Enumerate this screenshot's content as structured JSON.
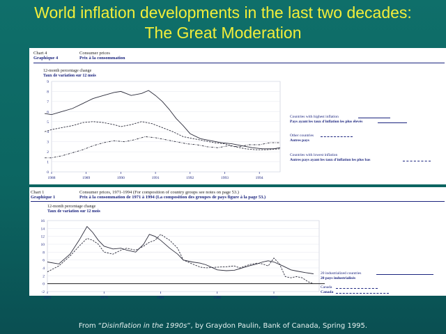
{
  "slide": {
    "title_line1": "World inflation developments in the last two decades:",
    "title_line2": "The Great Moderation",
    "footer_prefix": "From “",
    "footer_em": "Disinflation in the 1990s",
    "footer_suffix": "”, by Graydon Paulin, Bank of Canada, Spring 1995.",
    "title_color": "#f2ee3a"
  },
  "chart_data": [
    {
      "type": "line",
      "chart_label_en": "Chart 4",
      "chart_label_fr": "Graphique 4",
      "title": "Consumer prices",
      "title_fr": "Prix à la consommation",
      "ylabel": "12-month percentage change",
      "ylabel_fr": "Taux de variation sur 12 mois",
      "ylim": [
        0,
        9
      ],
      "y_ticks": [
        "0",
        "1",
        "2",
        "3",
        "4",
        "5",
        "6",
        "7",
        "8",
        "9"
      ],
      "x_ticks": [
        "1988",
        "1989",
        "1990",
        "1991",
        "1992",
        "1993",
        "1994"
      ],
      "x_range": [
        1988,
        1994.6
      ],
      "series": [
        {
          "name": "Countries with highest inflation",
          "name_fr": "Pays ayant les taux d'inflation les plus élevés",
          "style": "solid",
          "x": [
            1987.8,
            1988.0,
            1988.3,
            1988.6,
            1988.9,
            1989.2,
            1989.5,
            1989.8,
            1990.0,
            1990.3,
            1990.6,
            1990.8,
            1991.0,
            1991.2,
            1991.4,
            1991.6,
            1991.8,
            1992.0,
            1992.3,
            1992.6,
            1992.9,
            1993.2,
            1993.5,
            1993.8,
            1994.1,
            1994.4,
            1994.6
          ],
          "y": [
            5.8,
            5.7,
            6.0,
            6.3,
            6.8,
            7.3,
            7.6,
            7.9,
            8.0,
            7.6,
            7.8,
            8.1,
            7.6,
            7.0,
            6.2,
            5.3,
            4.6,
            3.8,
            3.3,
            3.1,
            2.9,
            2.8,
            2.6,
            2.4,
            2.3,
            2.3,
            2.4
          ]
        },
        {
          "name": "Other countries",
          "name_fr": "Autres pays",
          "style": "dashed",
          "x": [
            1987.8,
            1988.0,
            1988.3,
            1988.6,
            1988.9,
            1989.2,
            1989.5,
            1989.8,
            1990.0,
            1990.3,
            1990.6,
            1990.9,
            1991.2,
            1991.5,
            1991.8,
            1992.1,
            1992.4,
            1992.7,
            1993.0,
            1993.3,
            1993.6,
            1993.9,
            1994.2,
            1994.6
          ],
          "y": [
            4.0,
            4.2,
            4.4,
            4.6,
            4.9,
            5.0,
            4.9,
            4.7,
            4.5,
            4.7,
            5.0,
            4.8,
            4.4,
            4.0,
            3.5,
            3.3,
            3.1,
            2.9,
            2.8,
            2.5,
            2.3,
            2.2,
            2.2,
            2.3
          ]
        },
        {
          "name": "Countries with lowest inflation",
          "name_fr": "Autres pays ayant les taux d'inflation les plus bas",
          "style": "dashdot",
          "x": [
            1987.8,
            1988.0,
            1988.3,
            1988.6,
            1988.9,
            1989.2,
            1989.5,
            1989.8,
            1990.1,
            1990.4,
            1990.7,
            1991.0,
            1991.3,
            1991.6,
            1991.9,
            1992.2,
            1992.5,
            1992.8,
            1993.1,
            1993.4,
            1993.7,
            1994.0,
            1994.3,
            1994.6
          ],
          "y": [
            1.4,
            1.4,
            1.6,
            1.9,
            2.2,
            2.6,
            2.9,
            3.1,
            3.0,
            3.2,
            3.5,
            3.4,
            3.2,
            3.0,
            2.8,
            2.7,
            2.5,
            2.4,
            2.6,
            2.5,
            2.7,
            2.7,
            2.9,
            2.9
          ]
        }
      ]
    },
    {
      "type": "line",
      "chart_label_en": "Chart 1",
      "chart_label_fr": "Graphique 1",
      "title": "Consumer prices, 1971-1994 (For composition of country groups see notes on page 53.)",
      "title_fr": "Prix à la consommation de 1971 à 1994 (La composition des groupes de pays figure à la page 53.)",
      "ylabel": "12-month percentage change",
      "ylabel_fr": "Taux de variation sur 12 mois",
      "ylim": [
        -2,
        16
      ],
      "y_ticks": [
        "-2",
        "0",
        "2",
        "4",
        "6",
        "8",
        "10",
        "12",
        "14",
        "16"
      ],
      "x_ticks": [
        "1971",
        "1976",
        "1981",
        "1986",
        "1991"
      ],
      "x_range": [
        1971,
        1995
      ],
      "series": [
        {
          "name": "20 industrialized countries",
          "name_fr": "20 pays industrialisés",
          "style": "solid",
          "x": [
            1971,
            1972,
            1973,
            1973.8,
            1974.5,
            1975,
            1975.5,
            1976,
            1976.8,
            1977.5,
            1978,
            1978.8,
            1979.5,
            1980,
            1980.5,
            1981,
            1981.8,
            1982.5,
            1983,
            1983.8,
            1984.5,
            1985,
            1986,
            1986.8,
            1987.5,
            1988,
            1988.8,
            1989.5,
            1990,
            1990.5,
            1991,
            1991.8,
            1992.5,
            1993,
            1993.8,
            1994.5
          ],
          "y": [
            5.5,
            5.0,
            7.5,
            11.0,
            14.5,
            13.0,
            11.0,
            9.5,
            8.8,
            9.0,
            8.5,
            8.0,
            10.0,
            12.5,
            12.0,
            11.0,
            9.0,
            7.5,
            6.0,
            5.5,
            5.2,
            4.8,
            3.5,
            3.3,
            3.4,
            3.8,
            4.5,
            5.0,
            5.5,
            5.8,
            5.5,
            4.5,
            3.5,
            3.2,
            2.8,
            2.5
          ]
        },
        {
          "name": "Canada",
          "name_fr": "Canada",
          "style": "dashed",
          "x": [
            1971,
            1972,
            1973,
            1973.8,
            1974.5,
            1975,
            1975.5,
            1976,
            1976.8,
            1977.5,
            1978,
            1978.8,
            1979.5,
            1980,
            1980.5,
            1981,
            1981.8,
            1982.5,
            1983,
            1983.8,
            1984.5,
            1985,
            1986,
            1986.8,
            1987.5,
            1988,
            1988.8,
            1989.5,
            1990,
            1990.5,
            1991,
            1991.5,
            1992,
            1992.5,
            1993,
            1993.5,
            1994,
            1994.5
          ],
          "y": [
            3.0,
            4.5,
            7.0,
            9.5,
            11.5,
            11.0,
            10.0,
            8.0,
            7.5,
            8.5,
            9.0,
            8.5,
            9.5,
            10.5,
            11.0,
            12.5,
            11.0,
            9.0,
            6.0,
            5.0,
            4.2,
            4.0,
            4.2,
            4.3,
            4.5,
            4.0,
            4.8,
            5.2,
            5.0,
            4.5,
            6.5,
            5.0,
            1.8,
            1.5,
            1.8,
            1.5,
            0.5,
            0.0
          ]
        }
      ]
    }
  ]
}
